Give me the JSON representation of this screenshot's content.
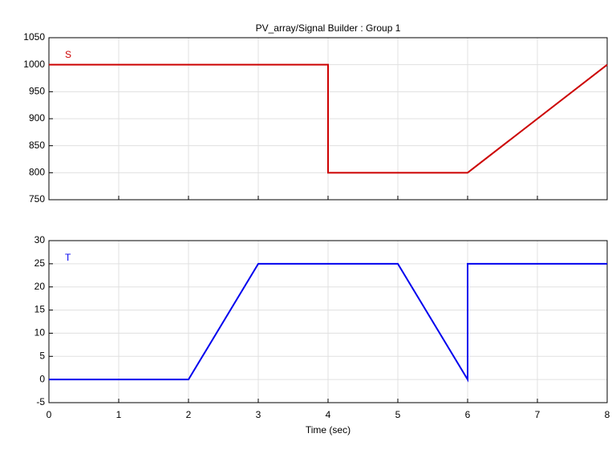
{
  "chart_data": [
    {
      "type": "line",
      "title": "PV_array/Signal Builder : Group 1",
      "x": [
        0,
        4,
        4,
        6,
        8
      ],
      "series": [
        {
          "name": "S",
          "color": "#cc0000",
          "values": [
            1000,
            1000,
            800,
            800,
            1000
          ]
        }
      ],
      "xlim": [
        0,
        8
      ],
      "xticks": [
        0,
        1,
        2,
        3,
        4,
        5,
        6,
        7,
        8
      ],
      "ylim": [
        750,
        1050
      ],
      "yticks": [
        750,
        800,
        850,
        900,
        950,
        1000,
        1050
      ],
      "grid": true
    },
    {
      "type": "line",
      "xlabel": "Time (sec)",
      "x": [
        0,
        2,
        3,
        5,
        6,
        6,
        8
      ],
      "series": [
        {
          "name": "T",
          "color": "#0000ee",
          "values": [
            0,
            0,
            25,
            25,
            0,
            25,
            25
          ]
        }
      ],
      "xlim": [
        0,
        8
      ],
      "xticks": [
        0,
        1,
        2,
        3,
        4,
        5,
        6,
        7,
        8
      ],
      "ylim": [
        -5,
        30
      ],
      "yticks": [
        -5,
        0,
        5,
        10,
        15,
        20,
        25,
        30
      ],
      "grid": true
    }
  ]
}
